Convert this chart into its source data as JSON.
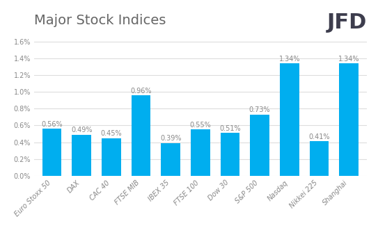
{
  "title": "Major Stock Indices",
  "categories": [
    "Euro Stoxx 50",
    "DAX",
    "CAC 40",
    "FTSE MIB",
    "IBEX 35",
    "FTSE 100",
    "Dow 30",
    "S&P 500",
    "Nasdaq",
    "Nikkei 225",
    "Shanghai"
  ],
  "values": [
    0.56,
    0.49,
    0.45,
    0.96,
    0.39,
    0.55,
    0.51,
    0.73,
    1.34,
    0.41,
    1.34
  ],
  "bar_color": "#00AEEF",
  "label_color": "#888888",
  "title_color": "#666666",
  "jfd_color": "#3d3d4d",
  "background_color": "#ffffff",
  "ylim": [
    0,
    1.72
  ],
  "yticks": [
    0.0,
    0.2,
    0.4,
    0.6,
    0.8,
    1.0,
    1.2,
    1.4,
    1.6
  ],
  "title_fontsize": 14,
  "bar_label_fontsize": 7,
  "tick_label_fontsize": 7,
  "jfd_fontsize": 22,
  "jfd_text": "JFD",
  "grid_color": "#dddddd",
  "bar_width": 0.65
}
